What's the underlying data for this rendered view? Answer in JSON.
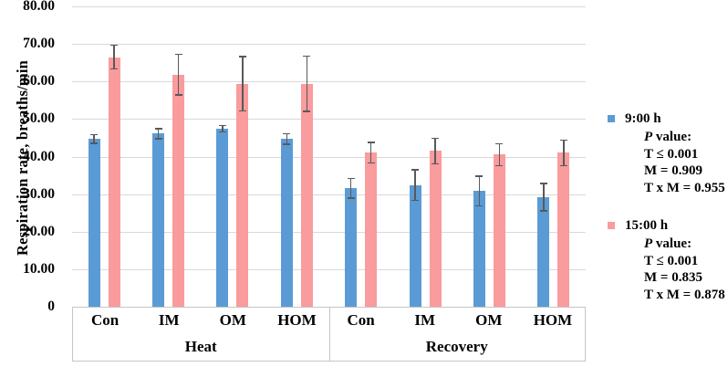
{
  "figure": {
    "background": "#FFFFFF",
    "gridline_color": "#D9D9D9",
    "axis_box_border_color": "#C6C6C6",
    "error_bar_color": "#595959"
  },
  "chart_data": {
    "type": "bar",
    "title": "",
    "xlabel": "",
    "ylabel": "Respiration rate, breaths/min",
    "ylim": [
      0,
      80
    ],
    "grid": true,
    "legend_position": "right",
    "yticks": [
      "80.00",
      "70.00",
      "60.00",
      "50.00",
      "40.00",
      "30.00",
      "20.00",
      "10.00",
      "0"
    ],
    "ytick_values": [
      80,
      70,
      60,
      50,
      40,
      30,
      20,
      10,
      0
    ],
    "categories": [
      "Con",
      "IM",
      "OM",
      "HOM",
      "Con",
      "IM",
      "OM",
      "HOM"
    ],
    "group_labels": [
      "Heat",
      "Recovery"
    ],
    "group_spans": [
      4,
      4
    ],
    "series": [
      {
        "name": "9:00 h",
        "color": "#5B9BD5",
        "values": [
          44.7,
          46.1,
          47.4,
          44.7,
          31.5,
          32.4,
          30.8,
          29.2
        ],
        "errors": [
          1.3,
          1.5,
          1.0,
          1.6,
          2.8,
          4.2,
          4.1,
          3.8
        ]
      },
      {
        "name": "15:00 h",
        "color": "#FA9B9D",
        "values": [
          66.5,
          61.8,
          59.4,
          59.4,
          41.0,
          41.5,
          40.5,
          41.0
        ],
        "errors": [
          3.4,
          5.6,
          7.4,
          7.5,
          2.9,
          3.6,
          3.1,
          3.6
        ]
      }
    ]
  },
  "legend": {
    "entries": [
      {
        "label": "9:00 h",
        "swatch_color": "#5B9BD5",
        "stats": [
          "P value:",
          "T ≤ 0.001",
          "M = 0.909",
          "T x M = 0.955"
        ]
      },
      {
        "label": "15:00 h",
        "swatch_color": "#FA9B9D",
        "stats": [
          "P value:",
          "T ≤ 0.001",
          "M = 0.835",
          "T x M = 0.878"
        ]
      }
    ]
  }
}
